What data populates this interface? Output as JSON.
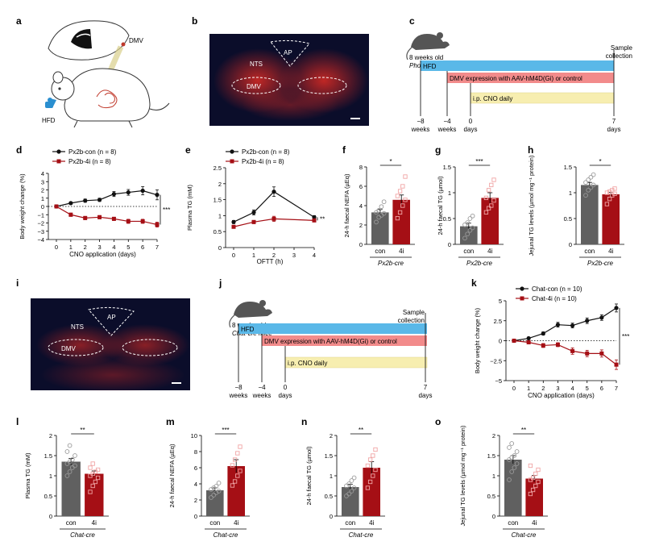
{
  "colors": {
    "con": "#606060",
    "con_line": "#111111",
    "treat": "#a50f15",
    "treat_light": "#f0a5a5",
    "hfd": "#5ab8e8",
    "dreadd": "#f28b8b",
    "cno": "#f7eeb0",
    "micro_bg": "#0b0d2a",
    "micro_signal": "#c8201e",
    "mouse": "#555555"
  },
  "labels": {
    "a": "a",
    "b": "b",
    "c": "c",
    "d": "d",
    "e": "e",
    "f": "f",
    "g": "g",
    "h": "h",
    "i": "i",
    "j": "j",
    "k": "k",
    "l": "l",
    "m": "m",
    "n": "n",
    "o": "o"
  },
  "schematic_a": {
    "dmv_label": "DMV",
    "hfd_label": "HFD"
  },
  "micrograph_b": {
    "nts": "NTS",
    "ap": "AP",
    "dmv": "DMV"
  },
  "micrograph_i": {
    "nts": "NTS",
    "ap": "AP",
    "dmv": "DMV"
  },
  "timeline_c": {
    "mouse_line1": "8 weeks old",
    "mouse_line2": "Phox2b-cre mice",
    "sample_line1": "Sample",
    "sample_line2": "collection",
    "bar_hfd": "HFD",
    "bar_dreadd": "DMV expression with AAV-hM4D(Gi) or control",
    "bar_cno": "i.p. CNO daily",
    "ticks": [
      {
        "value": "−8",
        "unit": "weeks"
      },
      {
        "value": "−4",
        "unit": "weeks"
      },
      {
        "value": "0",
        "unit": "days"
      },
      {
        "value": "7",
        "unit": "days"
      }
    ]
  },
  "timeline_j": {
    "mouse_line1": "8 weeks old",
    "mouse_line2": "Chat-cre mice",
    "sample_line1": "Sample",
    "sample_line2": "collection",
    "bar_hfd": "HFD",
    "bar_dreadd": "DMV expression with AAV-hM4D(Gi) or control",
    "bar_cno": "i.p. CNO daily",
    "ticks": [
      {
        "value": "−8",
        "unit": "weeks"
      },
      {
        "value": "−4",
        "unit": "weeks"
      },
      {
        "value": "0",
        "unit": "days"
      },
      {
        "value": "7",
        "unit": "days"
      }
    ]
  },
  "chart_data": [
    {
      "id": "d",
      "type": "line",
      "ylabel": "Body weight change (%)",
      "xlabel": "CNO application (days)",
      "ylim": [
        -4,
        4
      ],
      "yticks": [
        -4,
        -3,
        -2,
        -1,
        0,
        1,
        2,
        3,
        4
      ],
      "xlim": [
        0,
        7
      ],
      "xticks": [
        0,
        1,
        2,
        3,
        4,
        5,
        6,
        7
      ],
      "zero_line": true,
      "significance": "***",
      "legend_position": "top-left",
      "series": [
        {
          "name": "Px2b-con (n = 8)",
          "x": [
            0,
            1,
            2,
            3,
            4,
            5,
            6,
            7
          ],
          "y": [
            0,
            0.4,
            0.7,
            0.8,
            1.5,
            1.7,
            1.9,
            1.4
          ],
          "err": [
            0.05,
            0.15,
            0.2,
            0.2,
            0.3,
            0.35,
            0.5,
            0.6
          ]
        },
        {
          "name": "Px2b-4i (n = 8)",
          "x": [
            0,
            1,
            2,
            3,
            4,
            5,
            6,
            7
          ],
          "y": [
            0,
            -1.0,
            -1.4,
            -1.3,
            -1.5,
            -1.8,
            -1.8,
            -2.2
          ],
          "err": [
            0.05,
            0.2,
            0.2,
            0.2,
            0.2,
            0.25,
            0.25,
            0.3
          ]
        }
      ]
    },
    {
      "id": "e",
      "type": "line",
      "ylabel": "Plasma TG (mM)",
      "xlabel": "OFTT (h)",
      "ylim": [
        0,
        2.5
      ],
      "yticks": [
        0,
        0.5,
        1.0,
        1.5,
        2.0,
        2.5
      ],
      "xlim": [
        0,
        4
      ],
      "xticks": [
        0,
        1,
        2,
        3,
        4
      ],
      "significance": "**",
      "legend_position": "top-left",
      "series": [
        {
          "name": "Px2b-con (n = 8)",
          "x": [
            0,
            1,
            2,
            4
          ],
          "y": [
            0.8,
            1.1,
            1.75,
            0.95
          ],
          "err": [
            0.05,
            0.08,
            0.15,
            0.05
          ]
        },
        {
          "name": "Px2b-4i (n = 8)",
          "x": [
            0,
            1,
            2,
            4
          ],
          "y": [
            0.65,
            0.8,
            0.9,
            0.85
          ],
          "err": [
            0.04,
            0.05,
            0.08,
            0.04
          ]
        }
      ]
    },
    {
      "id": "f",
      "type": "bar",
      "ylabel": "24-h faecal NEFA (µEq)",
      "group_label": "Px2b-cre",
      "categories": [
        "con",
        "4i"
      ],
      "values": [
        3.3,
        4.6
      ],
      "err": [
        0.3,
        0.5
      ],
      "ylim": [
        0,
        8
      ],
      "yticks": [
        0,
        2,
        4,
        6,
        8
      ],
      "significance": "*",
      "points": [
        [
          2.3,
          2.8,
          3.0,
          3.2,
          3.3,
          3.5,
          3.9,
          4.4
        ],
        [
          2.7,
          3.3,
          4.0,
          4.6,
          5.0,
          5.5,
          6.0,
          7.0
        ]
      ]
    },
    {
      "id": "g",
      "type": "bar",
      "ylabel": "24-h faecal TG (µmol)",
      "group_label": "Px2b-cre",
      "categories": [
        "con",
        "4i"
      ],
      "values": [
        0.35,
        0.9
      ],
      "err": [
        0.06,
        0.1
      ],
      "ylim": [
        0,
        1.5
      ],
      "yticks": [
        0,
        0.5,
        1.0,
        1.5
      ],
      "significance": "***",
      "points": [
        [
          0.12,
          0.2,
          0.27,
          0.32,
          0.38,
          0.42,
          0.5,
          0.55
        ],
        [
          0.62,
          0.7,
          0.75,
          0.85,
          0.9,
          1.05,
          1.15,
          1.25
        ]
      ]
    },
    {
      "id": "h",
      "type": "bar",
      "ylabel": "Jejunal TG levels (µmol mg⁻¹ protein)",
      "group_label": "Px2b-cre",
      "categories": [
        "con",
        "4i"
      ],
      "values": [
        1.15,
        0.97
      ],
      "err": [
        0.05,
        0.04
      ],
      "ylim": [
        0,
        1.5
      ],
      "yticks": [
        0,
        0.5,
        1.0,
        1.5
      ],
      "significance": "*",
      "points": [
        [
          0.95,
          1.05,
          1.1,
          1.15,
          1.2,
          1.25,
          1.3,
          1.35
        ],
        [
          0.78,
          0.88,
          0.95,
          0.98,
          1.0,
          1.02,
          1.05,
          1.08
        ]
      ]
    },
    {
      "id": "k",
      "type": "line",
      "ylabel": "Body weight change (%)",
      "xlabel": "CNO application (days)",
      "ylim": [
        -5,
        5
      ],
      "yticks": [
        -5.0,
        -2.5,
        0,
        2.5,
        5.0
      ],
      "xlim": [
        0,
        7
      ],
      "xticks": [
        0,
        1,
        2,
        3,
        4,
        5,
        6,
        7
      ],
      "zero_line": true,
      "significance": "***",
      "legend_position": "top-left",
      "series": [
        {
          "name": "Chat-con (n = 10)",
          "x": [
            0,
            1,
            2,
            3,
            4,
            5,
            6,
            7
          ],
          "y": [
            0,
            0.3,
            0.9,
            2.0,
            1.9,
            2.5,
            2.9,
            4.1
          ],
          "err": [
            0.05,
            0.15,
            0.2,
            0.3,
            0.3,
            0.35,
            0.35,
            0.5
          ]
        },
        {
          "name": "Chat-4i (n = 10)",
          "x": [
            0,
            1,
            2,
            3,
            4,
            5,
            6,
            7
          ],
          "y": [
            0,
            -0.2,
            -0.6,
            -0.5,
            -1.3,
            -1.6,
            -1.6,
            -3.0
          ],
          "err": [
            0.05,
            0.2,
            0.25,
            0.25,
            0.4,
            0.4,
            0.45,
            0.6
          ]
        }
      ]
    },
    {
      "id": "l",
      "type": "bar",
      "ylabel": "Plasma TG (mM)",
      "group_label": "Chat-cre",
      "categories": [
        "con",
        "4i"
      ],
      "values": [
        1.35,
        1.05
      ],
      "err": [
        0.08,
        0.07
      ],
      "ylim": [
        0,
        2.0
      ],
      "yticks": [
        0,
        0.5,
        1.0,
        1.5,
        2.0
      ],
      "significance": "**",
      "points": [
        [
          1.0,
          1.1,
          1.2,
          1.25,
          1.3,
          1.35,
          1.4,
          1.5,
          1.6,
          1.75
        ],
        [
          0.6,
          0.75,
          0.85,
          0.95,
          1.0,
          1.05,
          1.1,
          1.15,
          1.2,
          1.3
        ]
      ]
    },
    {
      "id": "m",
      "type": "bar",
      "ylabel": "24-h faecal NEFA (µEq)",
      "group_label": "Chat-cre",
      "categories": [
        "con",
        "4i"
      ],
      "values": [
        3.2,
        6.2
      ],
      "err": [
        0.3,
        0.8
      ],
      "ylim": [
        0,
        10
      ],
      "yticks": [
        0,
        2,
        4,
        6,
        8,
        10
      ],
      "significance": "***",
      "points": [
        [
          2.3,
          2.6,
          2.9,
          3.1,
          3.3,
          3.5,
          3.7,
          4.1
        ],
        [
          3.8,
          4.3,
          5.0,
          5.6,
          6.3,
          7.0,
          7.8,
          8.6
        ]
      ]
    },
    {
      "id": "n",
      "type": "bar",
      "ylabel": "24-h faecal TG (µmol)",
      "group_label": "Chat-cre",
      "categories": [
        "con",
        "4i"
      ],
      "values": [
        0.72,
        1.2
      ],
      "err": [
        0.07,
        0.15
      ],
      "ylim": [
        0,
        2.0
      ],
      "yticks": [
        0,
        0.5,
        1.0,
        1.5,
        2.0
      ],
      "significance": "**",
      "points": [
        [
          0.5,
          0.55,
          0.62,
          0.7,
          0.75,
          0.8,
          0.88,
          0.95
        ],
        [
          0.7,
          0.85,
          1.0,
          1.15,
          1.25,
          1.4,
          1.5,
          1.65
        ]
      ]
    },
    {
      "id": "o",
      "type": "bar",
      "ylabel": "Jejunal TG levels (µmol mg⁻¹ protein)",
      "group_label": "Chat-cre",
      "categories": [
        "con",
        "4i"
      ],
      "values": [
        1.4,
        0.93
      ],
      "err": [
        0.1,
        0.08
      ],
      "ylim": [
        0,
        2.0
      ],
      "yticks": [
        0,
        0.5,
        1.0,
        1.5,
        2.0
      ],
      "significance": "**",
      "points": [
        [
          0.9,
          1.1,
          1.2,
          1.3,
          1.4,
          1.45,
          1.5,
          1.6,
          1.7,
          1.8
        ],
        [
          0.55,
          0.65,
          0.75,
          0.85,
          0.9,
          0.95,
          1.05,
          1.15,
          1.25
        ]
      ]
    }
  ]
}
